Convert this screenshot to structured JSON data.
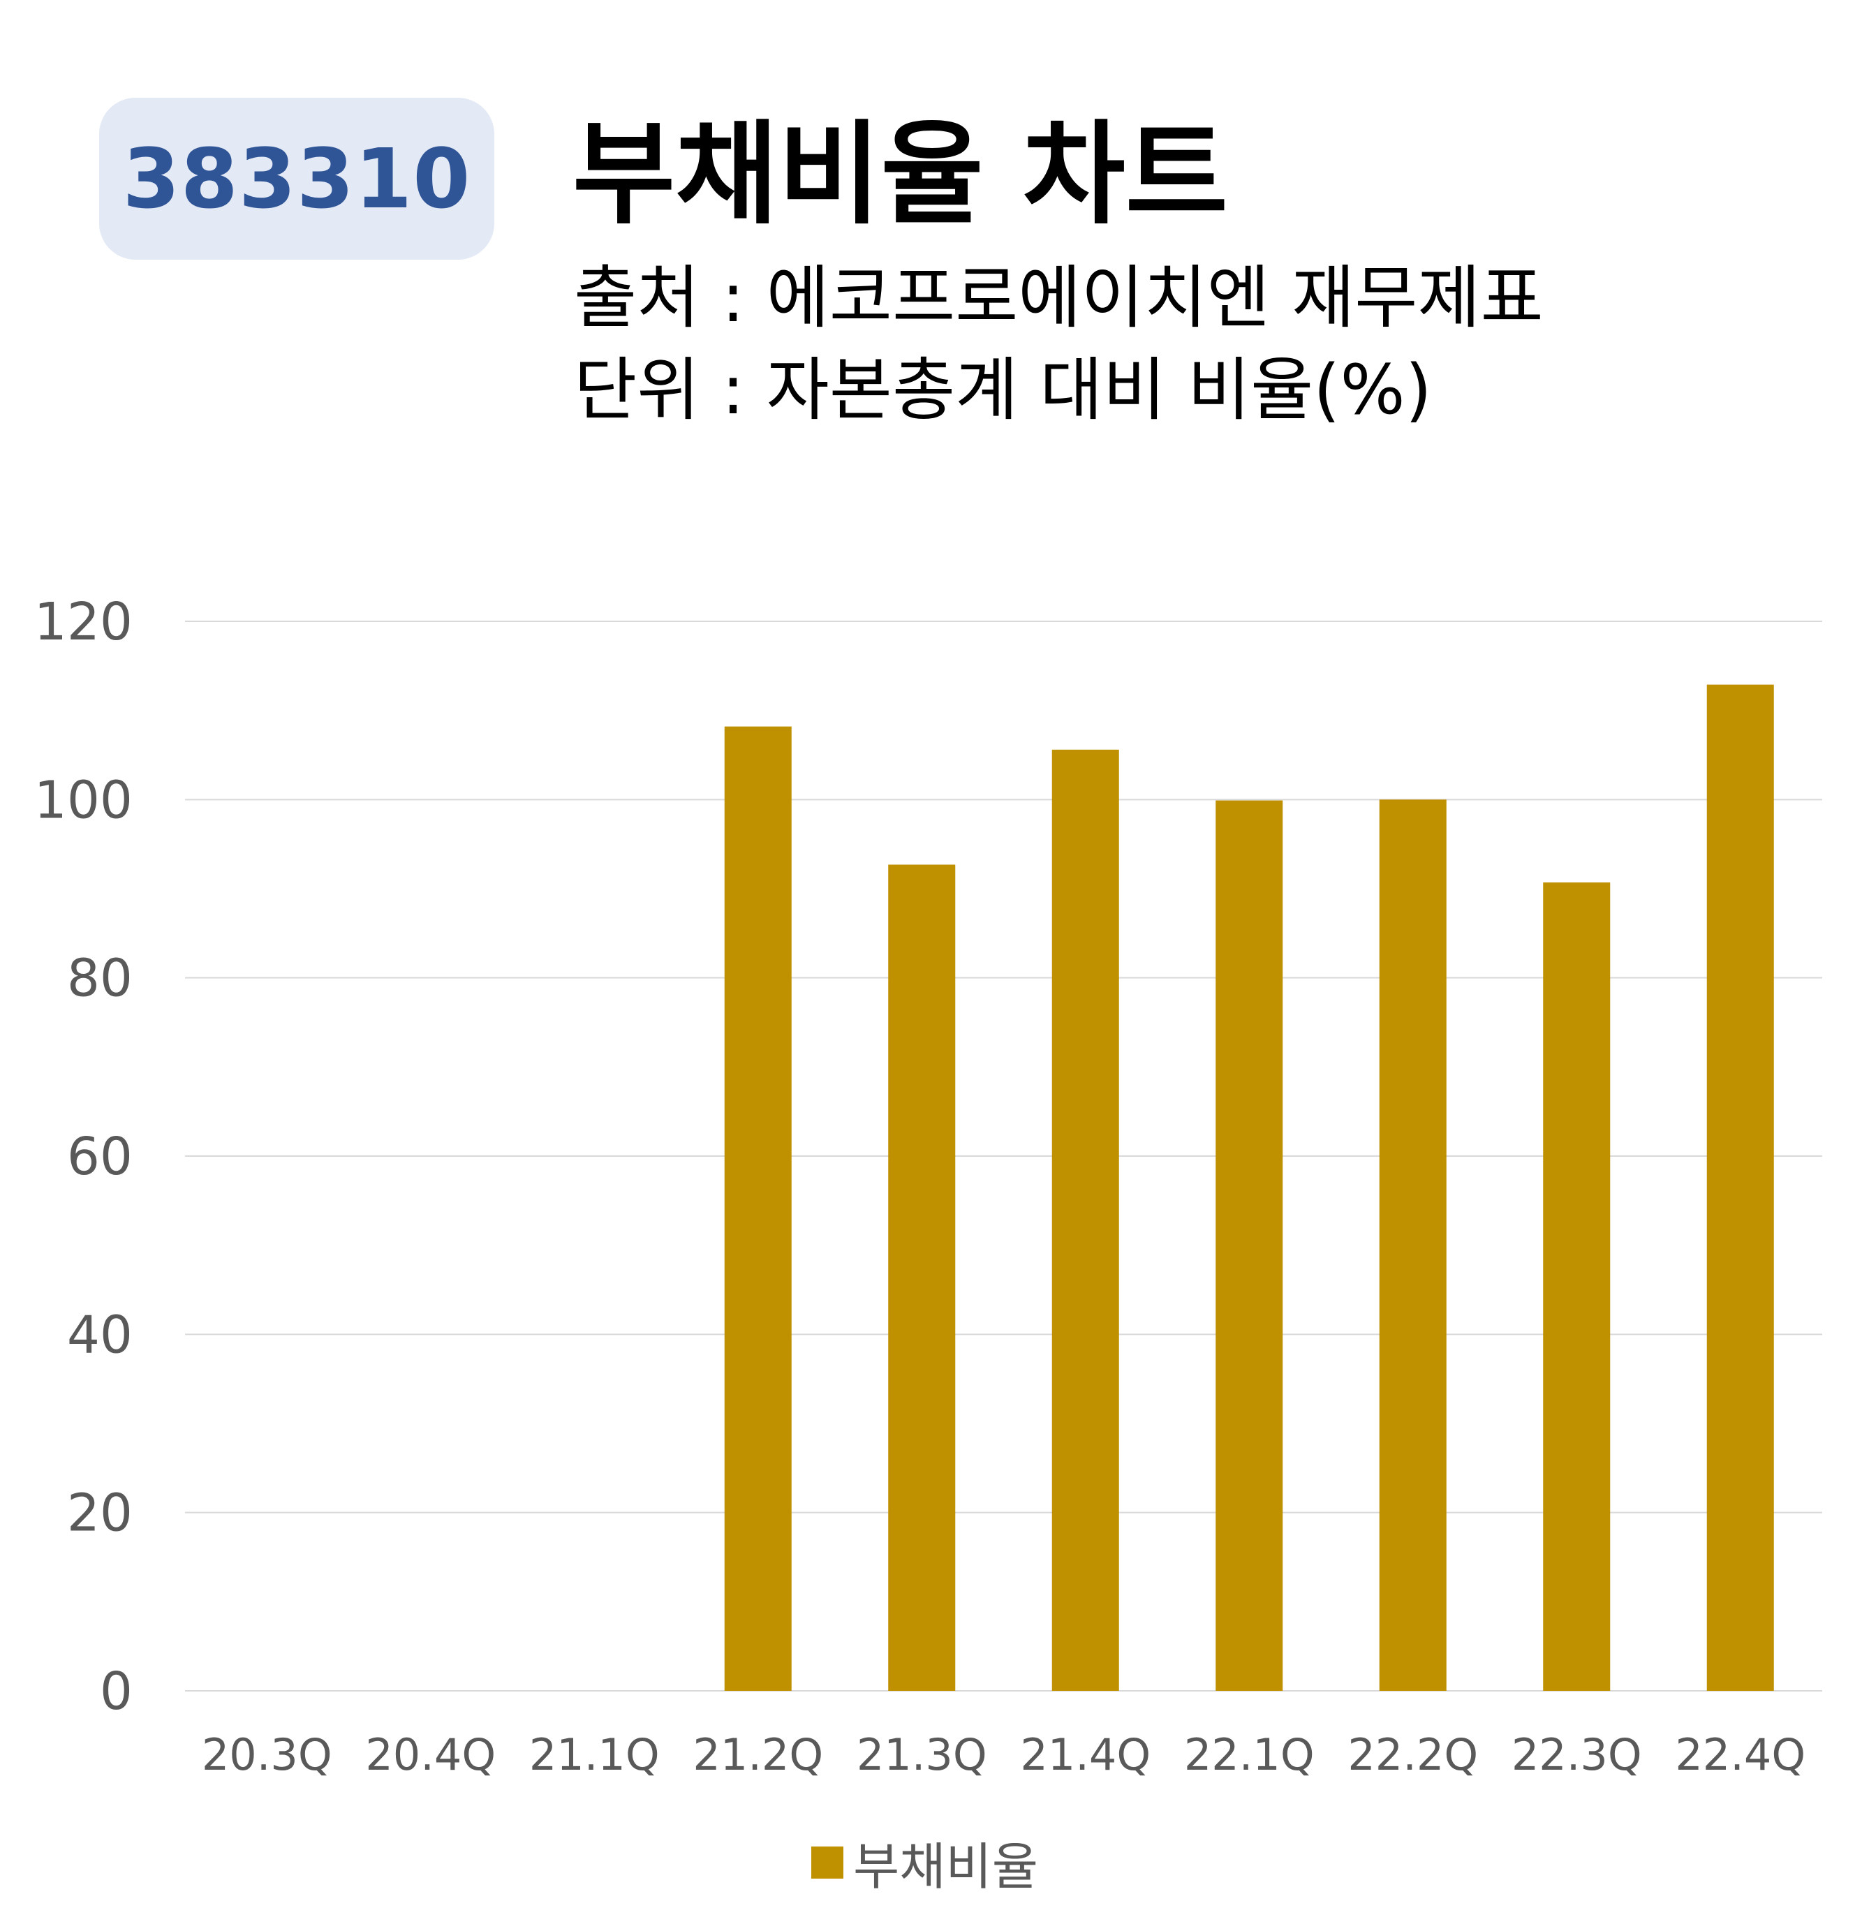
{
  "header": {
    "code": "383310",
    "title": "부채비율 차트",
    "source": "출처 : 에코프로에이치엔 재무제표",
    "unit": "단위 : 자본총계 대비 비율(%)"
  },
  "colors": {
    "bar": "#bf9000",
    "badge_bg": "#e3e9f5",
    "badge_text": "#2f5597",
    "grid": "#d9d9d9",
    "axis_text": "#595959"
  },
  "chart_data": {
    "type": "bar",
    "categories": [
      "20.3Q",
      "20.4Q",
      "21.1Q",
      "21.2Q",
      "21.3Q",
      "21.4Q",
      "22.1Q",
      "22.2Q",
      "22.3Q",
      "22.4Q"
    ],
    "series": [
      {
        "name": "부채비율",
        "values": [
          null,
          null,
          null,
          108.2,
          92.7,
          105.6,
          99.9,
          100.0,
          90.7,
          112.9
        ]
      }
    ],
    "ylim": [
      0,
      120
    ],
    "yticks": [
      "0",
      "20",
      "40",
      "60",
      "80",
      "100",
      "120"
    ],
    "grid": true,
    "legend": "bottom"
  }
}
